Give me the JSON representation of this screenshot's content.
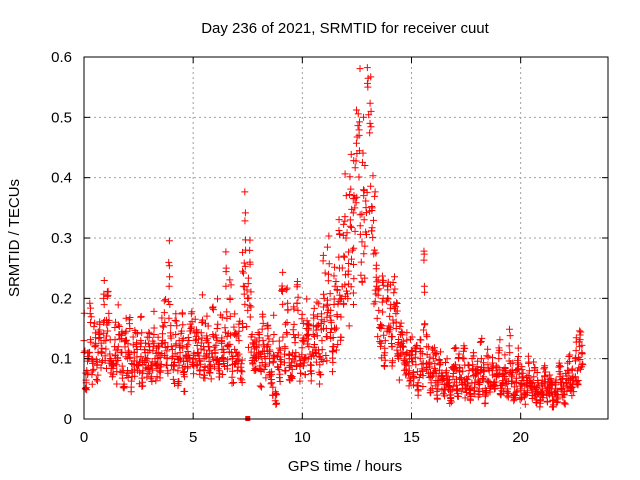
{
  "chart_data": {
    "type": "scatter",
    "title": "Day 236 of 2021, SRMTID for receiver cuut",
    "xlabel": "GPS time / hours",
    "ylabel": "SRMTID / TECUs",
    "xlim": [
      0,
      24
    ],
    "ylim": [
      0,
      0.6
    ],
    "xticks": [
      0,
      5,
      10,
      15,
      20
    ],
    "xtick_labels": [
      "0",
      "5",
      "10",
      "15",
      "20"
    ],
    "yticks": [
      0,
      0.1,
      0.2,
      0.3,
      0.4,
      0.5,
      0.6
    ],
    "ytick_labels": [
      "0",
      "0.1",
      "0.2",
      "0.3",
      "0.4",
      "0.5",
      "0.6"
    ],
    "grid": true,
    "marker": "plus",
    "color": "#ff0000",
    "series": [
      {
        "name": "SRMTID",
        "x": [
          0.0,
          0.1,
          0.2,
          0.3,
          0.4,
          0.5,
          0.6,
          0.7,
          0.8,
          0.9,
          1.0,
          1.1,
          1.2,
          1.3,
          1.4,
          1.5,
          1.6,
          1.7,
          1.8,
          1.9,
          2.0,
          2.1,
          2.2,
          2.3,
          2.4,
          2.5,
          2.6,
          2.7,
          2.8,
          2.9,
          3.0,
          3.1,
          3.2,
          3.3,
          3.4,
          3.5,
          3.6,
          3.7,
          3.8,
          3.9,
          4.0,
          4.1,
          4.2,
          4.3,
          4.4,
          4.5,
          4.6,
          4.7,
          4.8,
          4.9,
          5.0,
          5.1,
          5.2,
          5.3,
          5.4,
          5.5,
          5.6,
          5.7,
          5.8,
          5.9,
          6.0,
          6.1,
          6.2,
          6.3,
          6.4,
          6.5,
          6.6,
          6.7,
          6.8,
          6.9,
          7.0,
          7.1,
          7.2,
          7.3,
          7.4,
          7.5,
          7.6,
          7.7,
          7.8,
          7.9,
          8.0,
          8.1,
          8.2,
          8.3,
          8.4,
          8.5,
          8.6,
          8.7,
          8.8,
          8.9,
          9.0,
          9.1,
          9.2,
          9.3,
          9.4,
          9.5,
          9.6,
          9.7,
          9.8,
          9.9,
          10.0,
          10.1,
          10.2,
          10.3,
          10.4,
          10.5,
          10.6,
          10.7,
          10.8,
          10.9,
          11.0,
          11.1,
          11.2,
          11.3,
          11.4,
          11.5,
          11.6,
          11.7,
          11.8,
          11.9,
          12.0,
          12.1,
          12.2,
          12.3,
          12.4,
          12.5,
          12.6,
          12.7,
          12.8,
          12.9,
          13.0,
          13.1,
          13.2,
          13.3,
          13.4,
          13.5,
          13.6,
          13.7,
          13.8,
          13.9,
          14.0,
          14.1,
          14.2,
          14.3,
          14.4,
          14.5,
          14.6,
          14.7,
          14.8,
          14.9,
          15.0,
          15.1,
          15.2,
          15.3,
          15.4,
          15.5,
          15.6,
          15.7,
          15.8,
          15.9,
          16.0,
          16.1,
          16.2,
          16.3,
          16.4,
          16.5,
          16.6,
          16.7,
          16.8,
          16.9,
          17.0,
          17.1,
          17.2,
          17.3,
          17.4,
          17.5,
          17.6,
          17.7,
          17.8,
          17.9,
          18.0,
          18.1,
          18.2,
          18.3,
          18.4,
          18.5,
          18.6,
          18.7,
          18.8,
          18.9,
          19.0,
          19.1,
          19.2,
          19.3,
          19.4,
          19.5,
          19.6,
          19.7,
          19.8,
          19.9,
          20.0,
          20.1,
          20.2,
          20.3,
          20.4,
          20.5,
          20.6,
          20.7,
          20.8,
          20.9,
          21.0,
          21.1,
          21.2,
          21.3,
          21.4,
          21.5,
          21.6,
          21.7,
          21.8,
          21.9,
          22.0,
          22.1,
          22.2,
          22.3,
          22.4,
          22.5,
          22.6,
          22.7,
          22.8
        ],
        "y": [
          0.13,
          0.06,
          0.1,
          0.16,
          0.08,
          0.12,
          0.09,
          0.14,
          0.11,
          0.2,
          0.13,
          0.16,
          0.1,
          0.07,
          0.12,
          0.09,
          0.14,
          0.11,
          0.08,
          0.13,
          0.1,
          0.15,
          0.07,
          0.11,
          0.12,
          0.09,
          0.13,
          0.08,
          0.11,
          0.1,
          0.12,
          0.07,
          0.14,
          0.09,
          0.11,
          0.08,
          0.13,
          0.16,
          0.1,
          0.22,
          0.12,
          0.09,
          0.14,
          0.08,
          0.11,
          0.13,
          0.07,
          0.12,
          0.1,
          0.15,
          0.09,
          0.13,
          0.11,
          0.08,
          0.16,
          0.1,
          0.13,
          0.12,
          0.09,
          0.14,
          0.11,
          0.15,
          0.08,
          0.13,
          0.1,
          0.22,
          0.12,
          0.17,
          0.09,
          0.14,
          0.11,
          0.13,
          0.08,
          0.22,
          0.28,
          0.18,
          0.26,
          0.14,
          0.12,
          0.1,
          0.11,
          0.08,
          0.13,
          0.09,
          0.12,
          0.1,
          0.06,
          0.14,
          0.04,
          0.11,
          0.09,
          0.19,
          0.12,
          0.16,
          0.1,
          0.07,
          0.14,
          0.11,
          0.18,
          0.09,
          0.13,
          0.1,
          0.15,
          0.12,
          0.08,
          0.14,
          0.11,
          0.17,
          0.09,
          0.13,
          0.2,
          0.15,
          0.24,
          0.18,
          0.12,
          0.22,
          0.17,
          0.25,
          0.2,
          0.27,
          0.3,
          0.24,
          0.33,
          0.28,
          0.35,
          0.44,
          0.47,
          0.26,
          0.38,
          0.31,
          0.55,
          0.49,
          0.35,
          0.28,
          0.22,
          0.18,
          0.15,
          0.2,
          0.13,
          0.22,
          0.17,
          0.12,
          0.19,
          0.15,
          0.1,
          0.14,
          0.12,
          0.09,
          0.11,
          0.08,
          0.1,
          0.07,
          0.09,
          0.06,
          0.1,
          0.08,
          0.21,
          0.12,
          0.09,
          0.06,
          0.1,
          0.08,
          0.05,
          0.09,
          0.07,
          0.05,
          0.08,
          0.06,
          0.04,
          0.07,
          0.09,
          0.05,
          0.08,
          0.06,
          0.1,
          0.05,
          0.07,
          0.04,
          0.09,
          0.06,
          0.08,
          0.05,
          0.1,
          0.07,
          0.04,
          0.09,
          0.06,
          0.08,
          0.05,
          0.07,
          0.1,
          0.04,
          0.06,
          0.08,
          0.05,
          0.11,
          0.07,
          0.04,
          0.06,
          0.09,
          0.05,
          0.07,
          0.04,
          0.06,
          0.08,
          0.05,
          0.07,
          0.04,
          0.06,
          0.03,
          0.05,
          0.07,
          0.04,
          0.06,
          0.05,
          0.03,
          0.06,
          0.04,
          0.07,
          0.05,
          0.04,
          0.06,
          0.08,
          0.05,
          0.07,
          0.1,
          0.08,
          0.12,
          0.11
        ]
      }
    ],
    "annotations": [
      {
        "x": 7.5,
        "y": 0.0,
        "marker": "square"
      }
    ]
  }
}
